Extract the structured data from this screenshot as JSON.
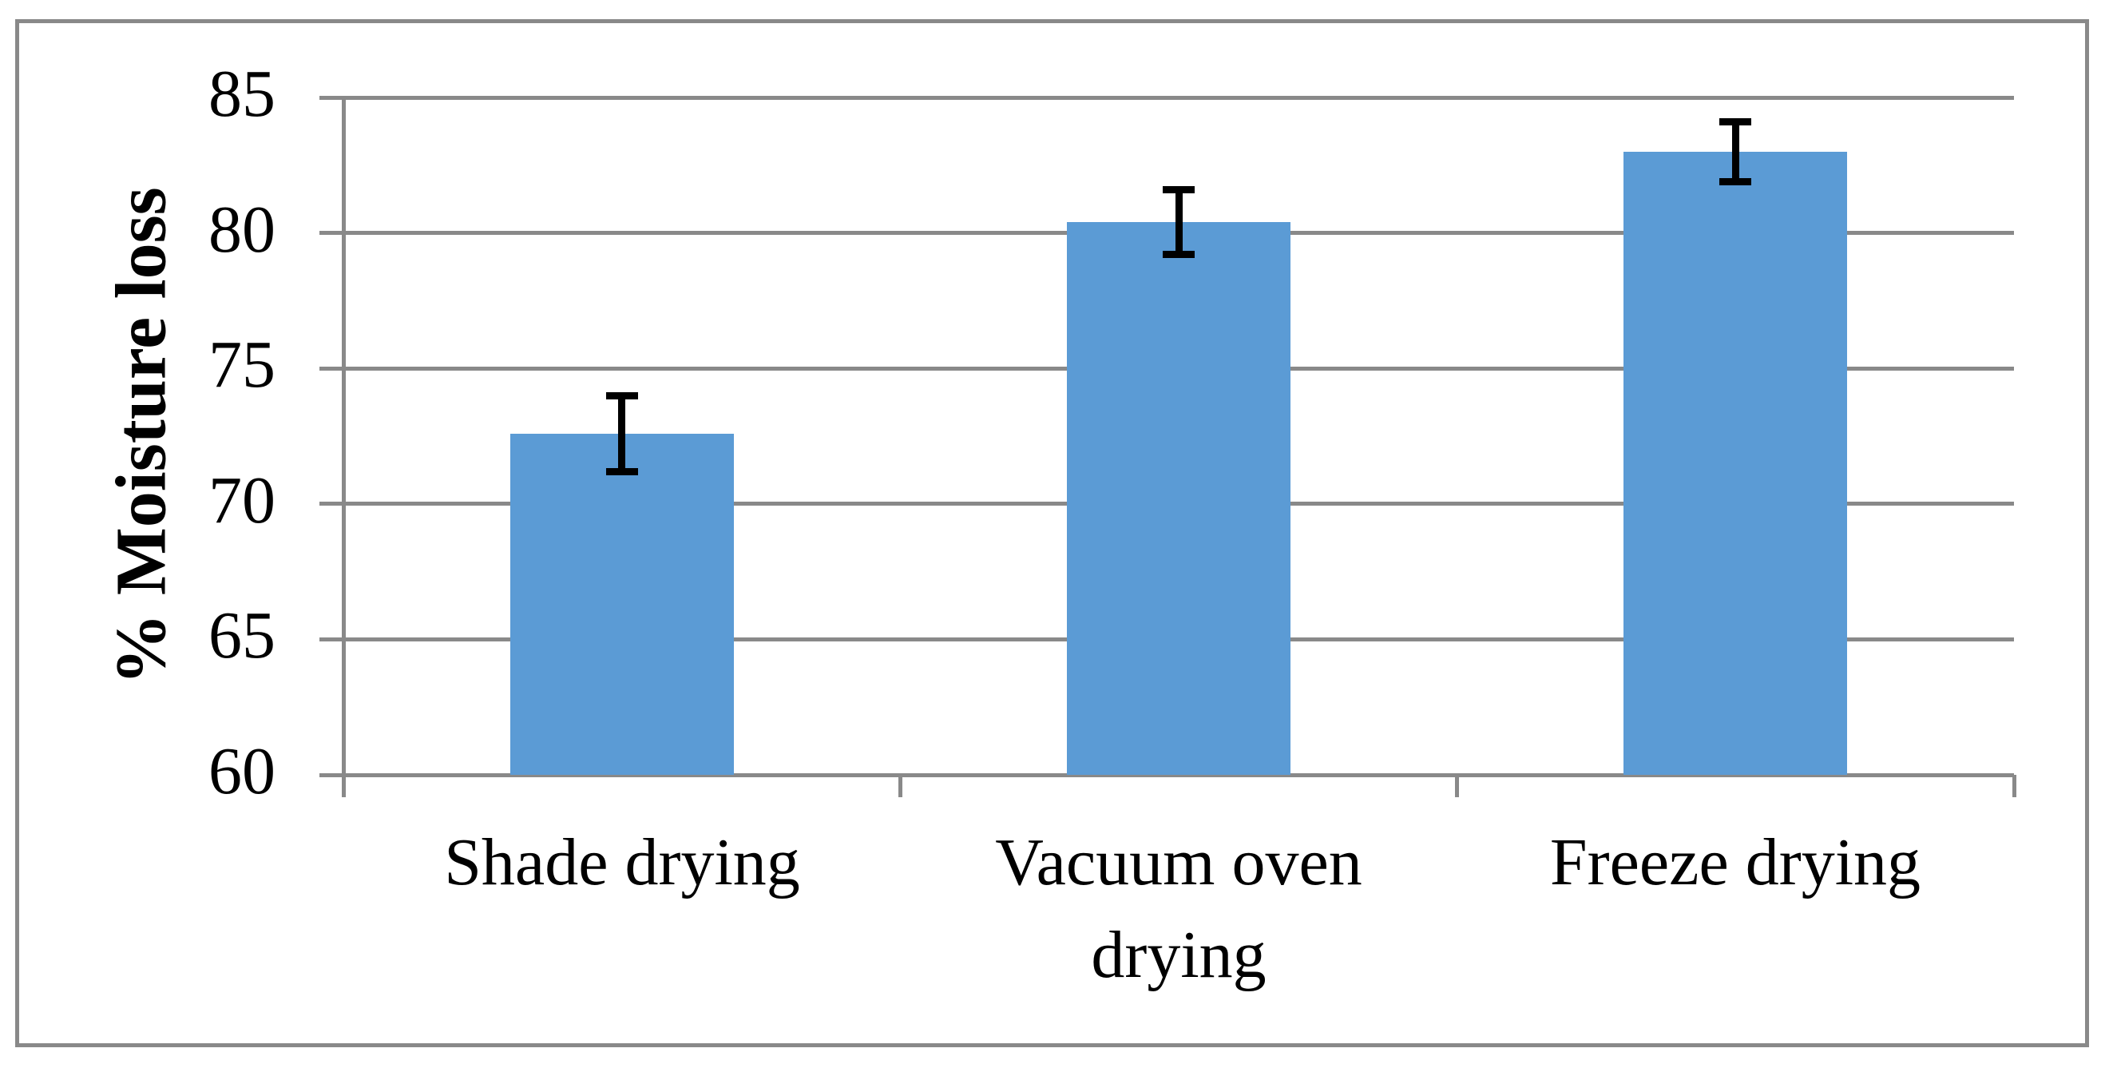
{
  "chart_data": {
    "type": "bar",
    "title": "",
    "ylabel": "% Moisture loss",
    "xlabel": "",
    "categories": [
      "Shade drying",
      "Vacuum oven drying",
      "Freeze drying"
    ],
    "category_display_lines": [
      [
        "Shade drying"
      ],
      [
        "Vacuum oven",
        "drying"
      ],
      [
        "Freeze drying"
      ]
    ],
    "values": [
      72.6,
      80.4,
      83.0
    ],
    "error_bars": [
      1.4,
      1.2,
      1.1
    ],
    "ylim": [
      60,
      85
    ],
    "yticks": [
      60,
      65,
      70,
      75,
      80,
      85
    ],
    "ytick_step": 5,
    "grid": "horizontal-major",
    "legend_position": "none",
    "colors": {
      "bar_fill": "#5B9BD5",
      "gridline": "#898989",
      "axis": "#898989",
      "figure_border": "#898989",
      "error_bar": "#000000",
      "text": "#000000",
      "background": "#FFFFFF"
    }
  }
}
